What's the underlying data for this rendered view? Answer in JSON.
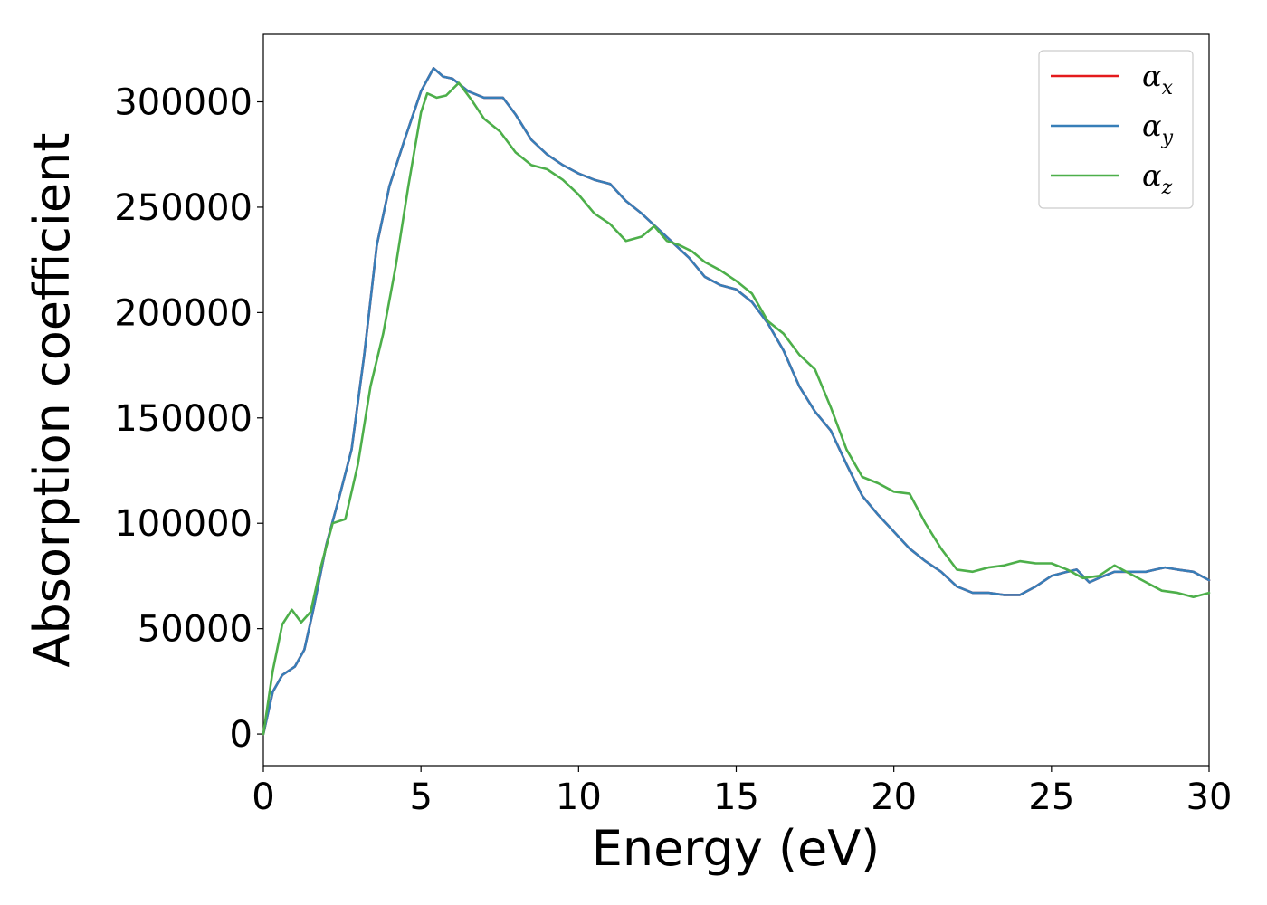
{
  "chart_data": {
    "type": "line",
    "xlabel": "Energy (eV)",
    "ylabel": "Absorption coefficient",
    "xlim": [
      0,
      30
    ],
    "ylim": [
      -15000,
      332000
    ],
    "xticks": [
      0,
      5,
      10,
      15,
      20,
      25,
      30
    ],
    "yticks": [
      0,
      50000,
      100000,
      150000,
      200000,
      250000,
      300000
    ],
    "grid": false,
    "legend_position": "top-right",
    "series": [
      {
        "name": "α_x",
        "legend_base": "α",
        "legend_sub": "x",
        "color": "#e41a1c",
        "x": [
          0,
          0.3,
          0.6,
          1.0,
          1.3,
          1.6,
          2.0,
          2.4,
          2.8,
          3.2,
          3.6,
          4.0,
          4.5,
          5.0,
          5.4,
          5.7,
          6.0,
          6.5,
          7.0,
          7.6,
          8.0,
          8.5,
          9.0,
          9.5,
          10.0,
          10.5,
          11.0,
          11.5,
          12.0,
          12.5,
          13.0,
          13.5,
          14.0,
          14.5,
          15.0,
          15.5,
          16.0,
          16.5,
          17.0,
          17.5,
          18.0,
          18.5,
          19.0,
          19.5,
          20.0,
          20.5,
          21.0,
          21.5,
          22.0,
          22.5,
          23.0,
          23.5,
          24.0,
          24.5,
          25.0,
          25.5,
          25.8,
          26.2,
          26.5,
          27.0,
          27.5,
          28.0,
          28.3,
          28.6,
          29.0,
          29.5,
          30.0
        ],
        "y": [
          0,
          20000,
          28000,
          32000,
          40000,
          60000,
          90000,
          112000,
          135000,
          180000,
          232000,
          260000,
          283000,
          305000,
          316000,
          312000,
          311000,
          305000,
          302000,
          302000,
          294000,
          282000,
          275000,
          270000,
          266000,
          263000,
          261000,
          253000,
          247000,
          240000,
          233000,
          226000,
          217000,
          213000,
          211000,
          205000,
          195000,
          182000,
          165000,
          153000,
          144000,
          128000,
          113000,
          104000,
          96000,
          88000,
          82000,
          77000,
          70000,
          67000,
          67000,
          66000,
          66000,
          70000,
          75000,
          77000,
          78000,
          72000,
          74000,
          77000,
          77000,
          77000,
          78000,
          79000,
          78000,
          77000,
          73000
        ]
      },
      {
        "name": "α_y",
        "legend_base": "α",
        "legend_sub": "y",
        "color": "#377eb8",
        "x": [
          0,
          0.3,
          0.6,
          1.0,
          1.3,
          1.6,
          2.0,
          2.4,
          2.8,
          3.2,
          3.6,
          4.0,
          4.5,
          5.0,
          5.4,
          5.7,
          6.0,
          6.5,
          7.0,
          7.6,
          8.0,
          8.5,
          9.0,
          9.5,
          10.0,
          10.5,
          11.0,
          11.5,
          12.0,
          12.5,
          13.0,
          13.5,
          14.0,
          14.5,
          15.0,
          15.5,
          16.0,
          16.5,
          17.0,
          17.5,
          18.0,
          18.5,
          19.0,
          19.5,
          20.0,
          20.5,
          21.0,
          21.5,
          22.0,
          22.5,
          23.0,
          23.5,
          24.0,
          24.5,
          25.0,
          25.5,
          25.8,
          26.2,
          26.5,
          27.0,
          27.5,
          28.0,
          28.3,
          28.6,
          29.0,
          29.5,
          30.0
        ],
        "y": [
          0,
          20000,
          28000,
          32000,
          40000,
          60000,
          90000,
          112000,
          135000,
          180000,
          232000,
          260000,
          283000,
          305000,
          316000,
          312000,
          311000,
          305000,
          302000,
          302000,
          294000,
          282000,
          275000,
          270000,
          266000,
          263000,
          261000,
          253000,
          247000,
          240000,
          233000,
          226000,
          217000,
          213000,
          211000,
          205000,
          195000,
          182000,
          165000,
          153000,
          144000,
          128000,
          113000,
          104000,
          96000,
          88000,
          82000,
          77000,
          70000,
          67000,
          67000,
          66000,
          66000,
          70000,
          75000,
          77000,
          78000,
          72000,
          74000,
          77000,
          77000,
          77000,
          78000,
          79000,
          78000,
          77000,
          73000
        ]
      },
      {
        "name": "α_z",
        "legend_base": "α",
        "legend_sub": "z",
        "color": "#4daf4a",
        "x": [
          0,
          0.3,
          0.6,
          0.9,
          1.2,
          1.5,
          1.8,
          2.2,
          2.6,
          3.0,
          3.4,
          3.8,
          4.2,
          4.6,
          5.0,
          5.2,
          5.5,
          5.8,
          6.2,
          6.6,
          7.0,
          7.5,
          8.0,
          8.5,
          9.0,
          9.5,
          10.0,
          10.5,
          11.0,
          11.5,
          12.0,
          12.4,
          12.8,
          13.2,
          13.6,
          14.0,
          14.5,
          15.0,
          15.5,
          16.0,
          16.5,
          17.0,
          17.5,
          18.0,
          18.5,
          19.0,
          19.5,
          20.0,
          20.5,
          21.0,
          21.5,
          22.0,
          22.5,
          23.0,
          23.5,
          24.0,
          24.5,
          25.0,
          25.5,
          26.0,
          26.5,
          27.0,
          27.5,
          28.0,
          28.5,
          29.0,
          29.5,
          30.0
        ],
        "y": [
          0,
          30000,
          52000,
          59000,
          53000,
          58000,
          78000,
          100000,
          102000,
          128000,
          165000,
          190000,
          222000,
          260000,
          295000,
          304000,
          302000,
          303000,
          309000,
          301000,
          292000,
          286000,
          276000,
          270000,
          268000,
          263000,
          256000,
          247000,
          242000,
          234000,
          236000,
          241000,
          234000,
          232000,
          229000,
          224000,
          220000,
          215000,
          209000,
          196000,
          190000,
          180000,
          173000,
          155000,
          135000,
          122000,
          119000,
          115000,
          114000,
          100000,
          88000,
          78000,
          77000,
          79000,
          80000,
          82000,
          81000,
          81000,
          78000,
          74000,
          75000,
          80000,
          76000,
          72000,
          68000,
          67000,
          65000,
          67000
        ]
      }
    ]
  }
}
